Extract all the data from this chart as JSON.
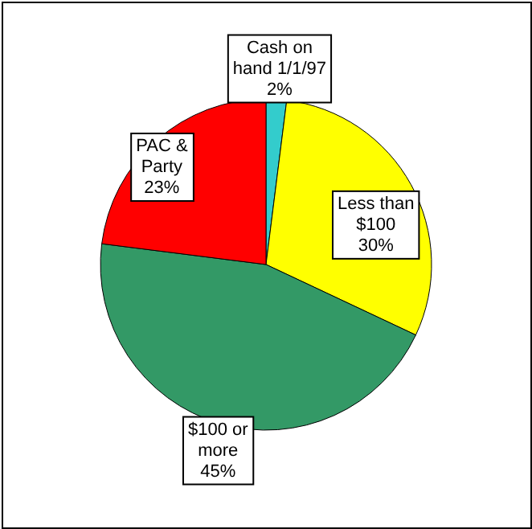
{
  "chart_data": {
    "type": "pie",
    "categories": [
      "Cash on hand 1/1/97",
      "Less than $100",
      "$100 or more",
      "PAC & Party"
    ],
    "values": [
      2,
      30,
      45,
      23
    ],
    "value_labels": [
      "2%",
      "30%",
      "45%",
      "23%"
    ],
    "colors": [
      "#33cccc",
      "#ffff00",
      "#339966",
      "#ff0000"
    ]
  }
}
